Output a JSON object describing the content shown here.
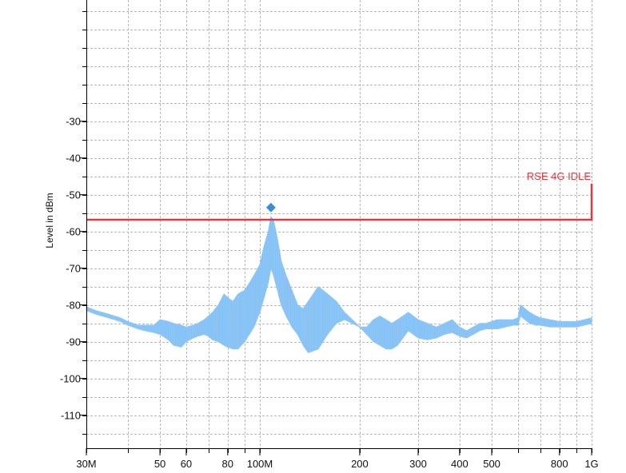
{
  "chart_data": {
    "type": "line",
    "title": "",
    "xlabel": "",
    "ylabel": "Level in dBm",
    "x_scale": "log",
    "xlim": [
      30,
      1000
    ],
    "ylim": [
      -119,
      3
    ],
    "grid": true,
    "x_ticks": [
      {
        "value": 30,
        "label": "30M"
      },
      {
        "value": 50,
        "label": "50"
      },
      {
        "value": 60,
        "label": "60"
      },
      {
        "value": 80,
        "label": "80"
      },
      {
        "value": 100,
        "label": "100M"
      },
      {
        "value": 200,
        "label": "200"
      },
      {
        "value": 300,
        "label": "300"
      },
      {
        "value": 400,
        "label": "400"
      },
      {
        "value": 500,
        "label": "500"
      },
      {
        "value": 800,
        "label": "800"
      },
      {
        "value": 1000,
        "label": "1G"
      }
    ],
    "y_ticks": [
      {
        "value": -30,
        "label": "-30"
      },
      {
        "value": -40,
        "label": "-40"
      },
      {
        "value": -50,
        "label": "-50"
      },
      {
        "value": -60,
        "label": "-60"
      },
      {
        "value": -70,
        "label": "-70"
      },
      {
        "value": -80,
        "label": "-80"
      },
      {
        "value": -90,
        "label": "-90"
      },
      {
        "value": -100,
        "label": "-100"
      },
      {
        "value": -110,
        "label": "-110"
      }
    ],
    "limit_line": {
      "label": "RSE 4G IDLE",
      "value": -56.8,
      "x_start": 30,
      "x_end": 1000,
      "step_top": -47,
      "color": "#e0393e"
    },
    "peak_marker": {
      "x": 108,
      "y": -53.5,
      "color": "#3a8ed8"
    },
    "series": [
      {
        "color": "#8ec7f7",
        "x": [
          30,
          32,
          35,
          38,
          40,
          43,
          45,
          48,
          50,
          53,
          55,
          58,
          60,
          63,
          65,
          68,
          70,
          72,
          75,
          78,
          80,
          83,
          86,
          90,
          93,
          96,
          100,
          103,
          106,
          108,
          110,
          113,
          116,
          120,
          125,
          130,
          135,
          140,
          150,
          160,
          170,
          180,
          190,
          200,
          210,
          220,
          230,
          240,
          250,
          260,
          270,
          280,
          290,
          300,
          320,
          340,
          360,
          380,
          400,
          420,
          440,
          460,
          480,
          500,
          520,
          550,
          580,
          600,
          610,
          630,
          650,
          680,
          700,
          750,
          800,
          850,
          900,
          950,
          1000
        ],
        "upper": [
          -80.5,
          -81.5,
          -82.5,
          -83.5,
          -84.5,
          -85.5,
          -85.5,
          -85.5,
          -84,
          -84.5,
          -85,
          -85.5,
          -86,
          -85.5,
          -85,
          -84,
          -83,
          -82,
          -80,
          -77,
          -78,
          -79,
          -77,
          -76,
          -74,
          -72,
          -69,
          -64,
          -60,
          -56,
          -57,
          -62,
          -68,
          -72,
          -76,
          -80,
          -81,
          -79,
          -75,
          -77,
          -79,
          -82,
          -84,
          -86,
          -86,
          -84,
          -83,
          -84,
          -85,
          -84,
          -83,
          -82,
          -83,
          -84,
          -85,
          -86,
          -85,
          -84,
          -86,
          -87,
          -86,
          -85,
          -85,
          -84.5,
          -84,
          -84,
          -84,
          -83.5,
          -80,
          -81,
          -82,
          -83,
          -83.5,
          -84,
          -84.5,
          -84.5,
          -84.5,
          -84,
          -83.5
        ],
        "lower": [
          -81.5,
          -82.5,
          -83.5,
          -84.5,
          -85.5,
          -86.5,
          -87,
          -87.5,
          -88,
          -89.5,
          -91,
          -91.5,
          -90,
          -89,
          -88.5,
          -88,
          -88.5,
          -89.5,
          -90,
          -91,
          -91.5,
          -92,
          -92,
          -90,
          -88,
          -86,
          -82,
          -78,
          -74,
          -70,
          -72,
          -76,
          -80,
          -83,
          -86,
          -88,
          -91,
          -93,
          -92,
          -88,
          -85,
          -84,
          -85,
          -86,
          -88,
          -90,
          -91,
          -92,
          -92,
          -91,
          -89,
          -87,
          -88,
          -89,
          -89.5,
          -89,
          -88,
          -87.5,
          -88.5,
          -89,
          -88,
          -87,
          -86.5,
          -86.5,
          -86.5,
          -86,
          -85.5,
          -85.5,
          -83,
          -84,
          -85,
          -85.5,
          -85.5,
          -86,
          -86,
          -86,
          -86,
          -85.5,
          -85
        ]
      }
    ]
  }
}
